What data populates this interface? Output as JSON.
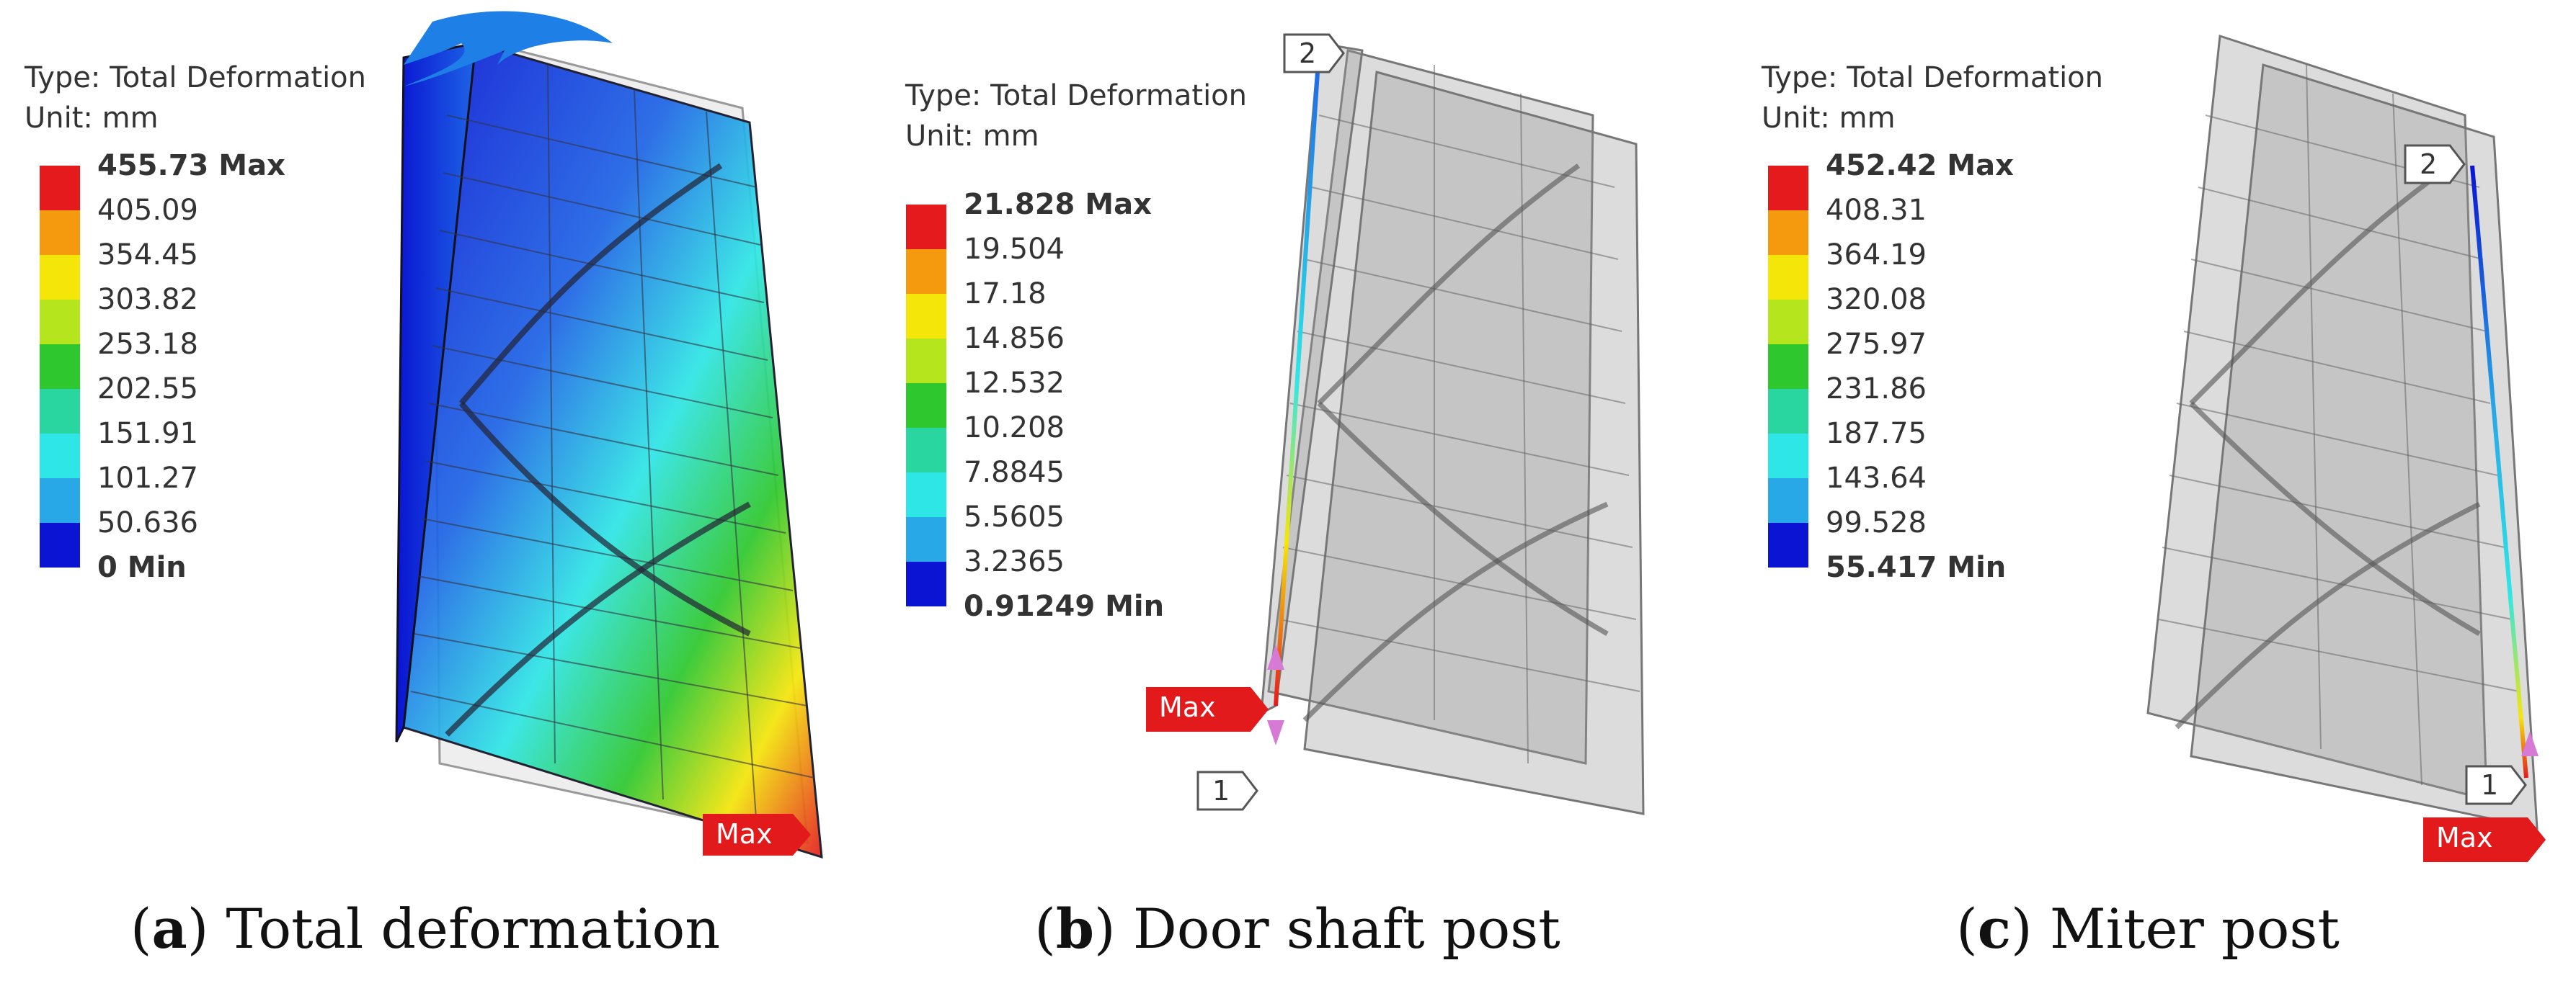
{
  "panels": [
    {
      "type_label": "Type: Total Deformation",
      "unit_label": "Unit: mm",
      "legend": [
        "455.73 Max",
        "405.09",
        "354.45",
        "303.82",
        "253.18",
        "202.55",
        "151.91",
        "101.27",
        "50.636",
        "0 Min"
      ],
      "max_tag": "Max",
      "caption_letter": "a",
      "caption_text": "Total deformation"
    },
    {
      "type_label": "Type: Total Deformation",
      "unit_label": "Unit: mm",
      "legend": [
        "21.828 Max",
        "19.504",
        "17.18",
        "14.856",
        "12.532",
        "10.208",
        "7.8845",
        "5.5605",
        "3.2365",
        "0.91249 Min"
      ],
      "max_tag": "Max",
      "probe_top": "2",
      "probe_bottom": "1",
      "caption_letter": "b",
      "caption_text": "Door shaft post"
    },
    {
      "type_label": "Type: Total Deformation",
      "unit_label": "Unit: mm",
      "legend": [
        "452.42 Max",
        "408.31",
        "364.19",
        "320.08",
        "275.97",
        "231.86",
        "187.75",
        "143.64",
        "99.528",
        "55.417 Min"
      ],
      "max_tag": "Max",
      "probe_top": "2",
      "probe_bottom": "1",
      "caption_letter": "c",
      "caption_text": "Miter post"
    }
  ],
  "colors": {
    "scale": [
      "#e41a1c",
      "#f59a0e",
      "#f5e60a",
      "#b5e61d",
      "#2ec82e",
      "#29d6a0",
      "#2ee6e6",
      "#28a8e6",
      "#1e64e6",
      "#0a14d2"
    ],
    "max_tag": "#e31a1c",
    "arrow": "#1e7fe6",
    "probe_marker": "#d67ad6"
  }
}
